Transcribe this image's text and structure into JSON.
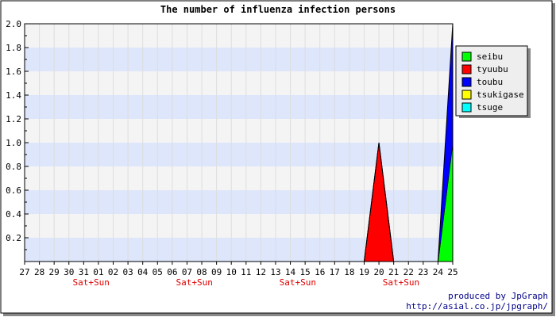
{
  "chart_data": {
    "type": "area",
    "title": "The number of influenza infection persons",
    "x": [
      "27",
      "28",
      "29",
      "30",
      "31",
      "01",
      "02",
      "03",
      "04",
      "05",
      "06",
      "07",
      "08",
      "09",
      "10",
      "11",
      "12",
      "13",
      "14",
      "15",
      "16",
      "17",
      "18",
      "19",
      "20",
      "21",
      "22",
      "23",
      "24",
      "25"
    ],
    "weekend_label": "Sat+Sun",
    "weekend_after": [
      "31",
      "07",
      "14",
      "21"
    ],
    "ylim": [
      0,
      2.0
    ],
    "yticks": [
      "0.2",
      "0.4",
      "0.6",
      "0.8",
      "1.0",
      "1.2",
      "1.4",
      "1.6",
      "1.8",
      "2.0"
    ],
    "grid": true,
    "stacked": true,
    "legend_position": "right",
    "series": [
      {
        "name": "seibu",
        "color": "#00ff00",
        "values": [
          0,
          0,
          0,
          0,
          0,
          0,
          0,
          0,
          0,
          0,
          0,
          0,
          0,
          0,
          0,
          0,
          0,
          0,
          0,
          0,
          0,
          0,
          0,
          0,
          0,
          0,
          0,
          0,
          0,
          1
        ]
      },
      {
        "name": "tyuubu",
        "color": "#ff0000",
        "values": [
          0,
          0,
          0,
          0,
          0,
          0,
          0,
          0,
          0,
          0,
          0,
          0,
          0,
          0,
          0,
          0,
          0,
          0,
          0,
          0,
          0,
          0,
          0,
          0,
          1,
          0,
          0,
          0,
          0,
          0
        ]
      },
      {
        "name": "toubu",
        "color": "#0000ff",
        "values": [
          0,
          0,
          0,
          0,
          0,
          0,
          0,
          0,
          0,
          0,
          0,
          0,
          0,
          0,
          0,
          0,
          0,
          0,
          0,
          0,
          0,
          0,
          0,
          0,
          0,
          0,
          0,
          0,
          0,
          1
        ]
      },
      {
        "name": "tsukigase",
        "color": "#ffff00",
        "values": [
          0,
          0,
          0,
          0,
          0,
          0,
          0,
          0,
          0,
          0,
          0,
          0,
          0,
          0,
          0,
          0,
          0,
          0,
          0,
          0,
          0,
          0,
          0,
          0,
          0,
          0,
          0,
          0,
          0,
          0
        ]
      },
      {
        "name": "tsuge",
        "color": "#00ffff",
        "values": [
          0,
          0,
          0,
          0,
          0,
          0,
          0,
          0,
          0,
          0,
          0,
          0,
          0,
          0,
          0,
          0,
          0,
          0,
          0,
          0,
          0,
          0,
          0,
          0,
          0,
          0,
          0,
          0,
          0,
          0
        ]
      }
    ]
  },
  "footer": {
    "line1": "produced by JpGraph",
    "line2": "http://asial.co.jp/jpgraph/"
  },
  "colors": {
    "band_a": "#dde6fb",
    "band_b": "#f4f4f4",
    "weekend_text": "#dd0000",
    "footer_text": "#000088"
  }
}
